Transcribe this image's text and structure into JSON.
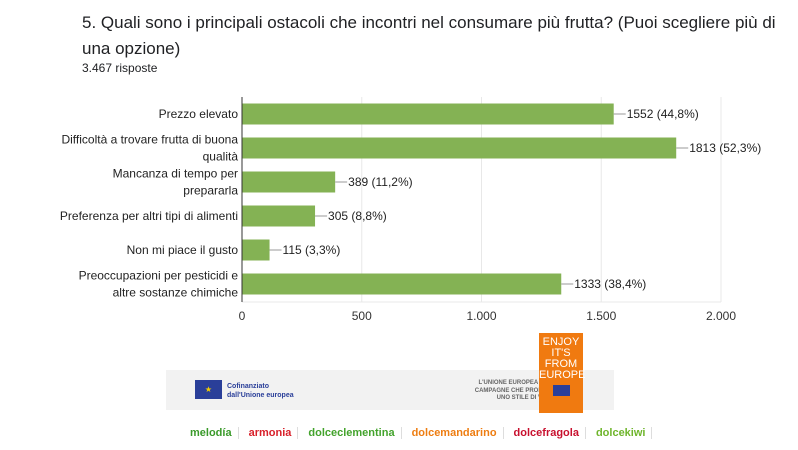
{
  "question": {
    "title": "5. Quali sono i principali ostacoli che incontri nel consumare più frutta? (Puoi scegliere più di una opzione)",
    "responses": "3.467 risposte"
  },
  "chart_data": {
    "type": "bar",
    "orientation": "horizontal",
    "categories": [
      [
        "Prezzo elevato"
      ],
      [
        "Difficoltà a trovare frutta di buona",
        "qualità"
      ],
      [
        "Mancanza di tempo per",
        "prepararla"
      ],
      [
        "Preferenza per altri tipi di alimenti"
      ],
      [
        "Non mi piace il gusto"
      ],
      [
        "Preoccupazioni per pesticidi e",
        "altre sostanze chimiche"
      ]
    ],
    "values": [
      1552,
      1813,
      389,
      305,
      115,
      1333
    ],
    "labels": [
      "1552 (44,8%)",
      "1813 (52,3%)",
      "389 (11,2%)",
      "305 (8,8%)",
      "115 (3,3%)",
      "1333 (38,4%)"
    ],
    "xlim": [
      0,
      2000
    ],
    "xticks": [
      0,
      500,
      1000,
      1500,
      2000
    ],
    "xtick_labels": [
      "0",
      "500",
      "1.000",
      "1.500",
      "2.000"
    ],
    "grid": true,
    "bar_color": "#84b254"
  },
  "footer": {
    "eu_line1": "Cofinanziato",
    "eu_line2": "dall'Unione europea",
    "ue_text": [
      "L'UNIONE EUROPEA SOSTIENE",
      "CAMPAGNE CHE PROMUOVONO",
      "UNO STILE DI VITA SANO"
    ],
    "enjoy": [
      "ENJOY",
      "IT'S FROM",
      "EUROPE"
    ],
    "brands": [
      {
        "name": "melodía",
        "color": "#3a9a2a"
      },
      {
        "name": "armonia",
        "color": "#d8202a"
      },
      {
        "name": "dolceclementina",
        "color": "#43a32c"
      },
      {
        "name": "dolcemandarino",
        "color": "#ee7d11"
      },
      {
        "name": "dolcefragola",
        "color": "#c8102e"
      },
      {
        "name": "dolcekiwi",
        "color": "#6fb52c"
      }
    ]
  }
}
